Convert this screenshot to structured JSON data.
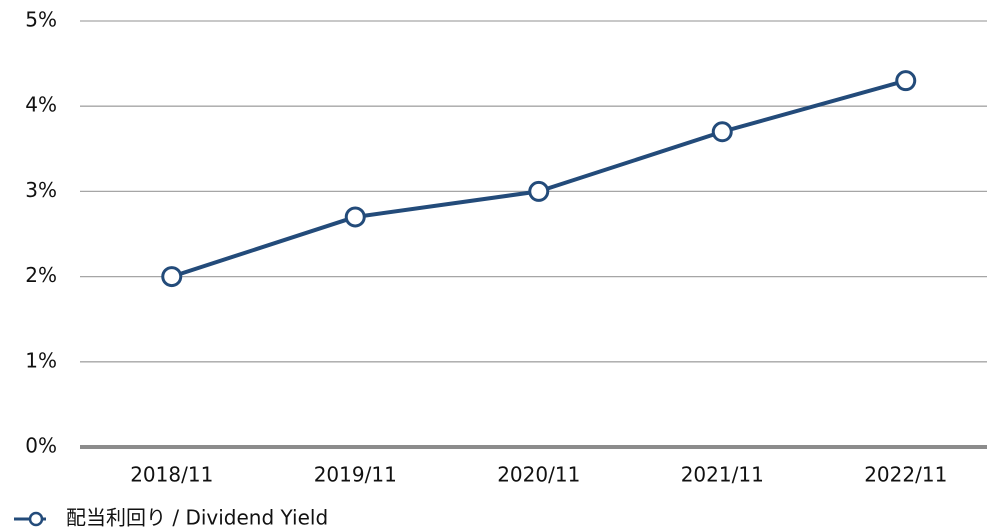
{
  "chart_data": {
    "type": "line",
    "categories": [
      "2018/11",
      "2019/11",
      "2020/11",
      "2021/11",
      "2022/11"
    ],
    "series": [
      {
        "name": "配当利回り / Dividend Yield",
        "color": "#234b7a",
        "values": [
          2.0,
          2.7,
          3.0,
          3.7,
          4.3
        ]
      }
    ],
    "ylim": [
      0,
      5
    ],
    "yticks": [
      {
        "value": 0,
        "label": "0%"
      },
      {
        "value": 1,
        "label": "1%"
      },
      {
        "value": 2,
        "label": "2%"
      },
      {
        "value": 3,
        "label": "3%"
      },
      {
        "value": 4,
        "label": "4%"
      },
      {
        "value": 5,
        "label": "5%"
      }
    ],
    "grid": true,
    "legend": "bottom-left"
  }
}
